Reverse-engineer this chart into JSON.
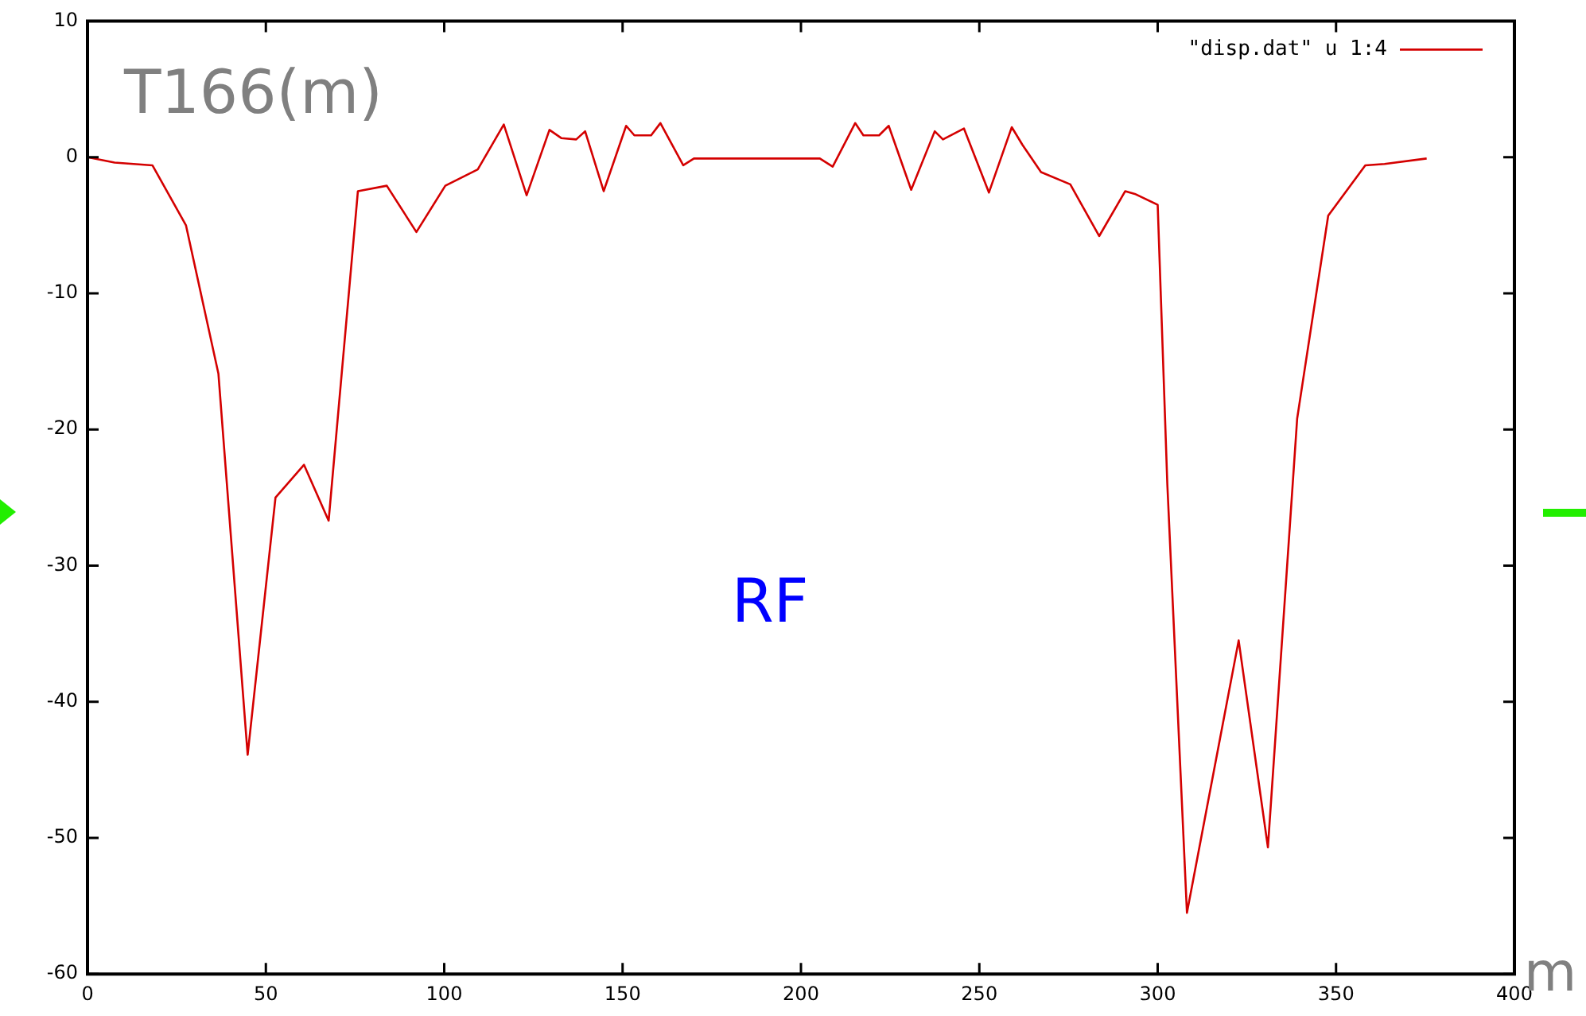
{
  "chart_data": {
    "type": "line",
    "annotations": [
      "T166(m)",
      "RF",
      "m"
    ],
    "legend": "top right",
    "grid": false,
    "marker": "none",
    "line_style": "solid",
    "xlim": [
      0,
      400
    ],
    "xticks": [
      0,
      50,
      100,
      150,
      200,
      250,
      300,
      350,
      400
    ],
    "ylim": [
      -60,
      10
    ],
    "yticks": [
      -60,
      -50,
      -40,
      -30,
      -20,
      -10,
      0,
      10
    ],
    "series": [
      {
        "name": "\"disp.dat\" u 1:4",
        "color": "#d40000",
        "x": [
          0,
          7.6,
          18.2,
          27.6,
          36.7,
          44.9,
          52.7,
          60.7,
          67.6,
          75.8,
          83.9,
          92.2,
          100.3,
          109.4,
          116.7,
          123.1,
          129.5,
          132.8,
          137,
          139.5,
          144.7,
          151,
          153.3,
          158,
          160.6,
          167,
          170,
          205.3,
          208.9,
          215.2,
          217.5,
          221.9,
          224.6,
          230.9,
          237.5,
          239.8,
          245.7,
          252.7,
          259.1,
          262.1,
          267.3,
          275.5,
          283.6,
          290.9,
          293.6,
          300,
          302.7,
          308.2,
          322.7,
          330.9,
          339.1,
          347.8,
          358.2,
          363.6,
          375.4
        ],
        "values": [
          0,
          -0.4,
          -0.6,
          -5,
          -15.9,
          -43.9,
          -25,
          -22.6,
          -26.7,
          -2.5,
          -2.1,
          -5.5,
          -2.1,
          -0.9,
          2.4,
          -2.8,
          2,
          1.4,
          1.3,
          1.9,
          -2.5,
          2.3,
          1.6,
          1.6,
          2.5,
          -0.6,
          -0.1,
          -0.1,
          -0.7,
          2.5,
          1.6,
          1.6,
          2.3,
          -2.4,
          1.9,
          1.3,
          2.1,
          -2.6,
          2.2,
          0.9,
          -1.1,
          -2,
          -5.8,
          -2.5,
          -2.7,
          -3.5,
          -24,
          -55.5,
          -35.5,
          -50.7,
          -19.2,
          -4.3,
          -0.6,
          -0.5,
          -0.1
        ]
      }
    ]
  }
}
